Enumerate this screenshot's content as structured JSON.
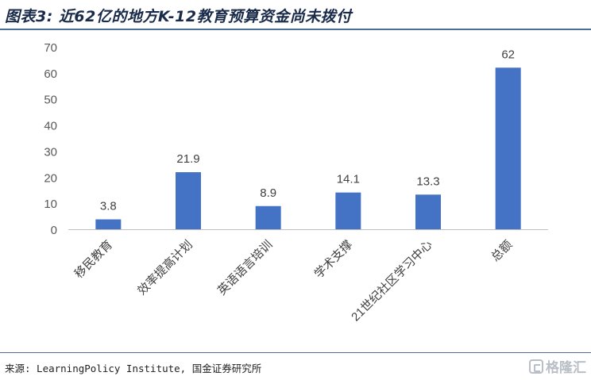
{
  "title": "图表3: 近62亿的地方K-12教育预算资金尚未拨付",
  "source": "来源: LearningPolicy Institute, 国金证券研究所",
  "watermark": {
    "text": "格隆汇",
    "icon": "gelonghui-logo-icon"
  },
  "chart_data": {
    "type": "bar",
    "title": "",
    "xlabel": "",
    "ylabel": "",
    "categories": [
      "移民教育",
      "效率提高计划",
      "英语语言培训",
      "学术支撑",
      "21世纪社区学习中心",
      "总额"
    ],
    "values": [
      3.8,
      21.9,
      8.9,
      14.1,
      13.3,
      62
    ],
    "value_labels": [
      "3.8",
      "21.9",
      "8.9",
      "14.1",
      "13.3",
      "62"
    ],
    "ylim": [
      0,
      70
    ],
    "yticks": [
      0,
      10,
      20,
      30,
      40,
      50,
      60,
      70
    ],
    "bar_color": "#4472c4",
    "grid": false,
    "legend": "none"
  }
}
